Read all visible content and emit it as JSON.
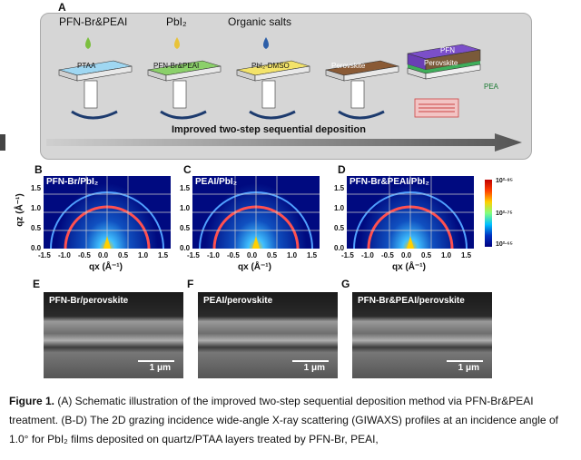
{
  "panel_a": {
    "letter": "A",
    "reagents": [
      "PFN-Br&PEAI",
      "PbI₂",
      "Organic salts"
    ],
    "layers": [
      "PTAA",
      "PFN-Br&PEAI",
      "PbI₂-DMSO",
      "Perovskite"
    ],
    "stack": [
      "PFN",
      "Perovskite",
      "PEA"
    ],
    "arrow_label": "Improved two-step sequential deposition",
    "colors": {
      "drop_green": "#7cbf3f",
      "drop_yellow": "#e8c33a",
      "drop_blue": "#2d5fa8"
    }
  },
  "giwaxs": {
    "panels": [
      {
        "letter": "B",
        "label": "PFN-Br/PbI₂"
      },
      {
        "letter": "C",
        "label": "PEAI/PbI₂"
      },
      {
        "letter": "D",
        "label": "PFN-Br&PEAI/PbI₂"
      }
    ],
    "ylabel": "qz (Å⁻¹)",
    "xlabel": "qx (Å⁻¹)",
    "yticks": [
      "1.5",
      "1.0",
      "0.5",
      "0.0"
    ],
    "xticks": [
      "-1.5",
      "-1.0",
      "-0.5",
      "0.0",
      "0.5",
      "1.0",
      "1.5"
    ],
    "colorbar": [
      "10²·⁸⁵",
      "10²·⁷⁵",
      "10²·⁶⁵"
    ]
  },
  "sem": {
    "panels": [
      {
        "letter": "E",
        "label": "PFN-Br/perovskite"
      },
      {
        "letter": "F",
        "label": "PEAI/perovskite"
      },
      {
        "letter": "G",
        "label": "PFN-Br&PEAI/perovskite"
      }
    ],
    "scale": "1 μm"
  },
  "caption": {
    "bold": "Figure 1.",
    "text": " (A) Schematic illustration of the improved two-step sequential deposition method via PFN-Br&PEAI treatment. (B-D) The 2D grazing incidence wide-angle X-ray scattering (GIWAXS) profiles at an incidence angle of 1.0° for PbI₂ films deposited on quartz/PTAA layers treated by PFN-Br, PEAI,"
  }
}
